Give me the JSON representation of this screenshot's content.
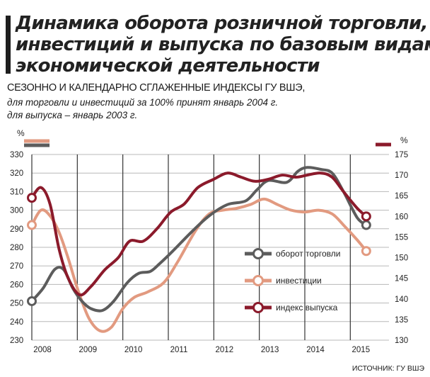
{
  "header": {
    "title_line1": "Динамика оборота розничной торговли,",
    "title_line2": "инвестиций и выпуска по базовым видам",
    "title_line3": "экономической деятельности",
    "subtitle1": "СЕЗОННО И КАЛЕНДАРНО СГЛАЖЕННЫЕ ИНДЕКСЫ ГУ ВШЭ,",
    "subtitle2": "для торговли и инвестиций за 100% принят январь 2004 г.",
    "subtitle3": "для выпуска – январь 2003 г."
  },
  "source": "ИСТОЧНИК: ГУ ВШЭ",
  "colors": {
    "trade": "#5c5c5c",
    "investment": "#e29a80",
    "output": "#8b1a2b",
    "grid": "#b8b8b8",
    "background": "#ffffff"
  },
  "chart_data": {
    "type": "line",
    "x_ticks": [
      "2008",
      "2009",
      "2010",
      "2011",
      "2012",
      "2013",
      "2014",
      "2015"
    ],
    "x_range": [
      2008,
      2015.85
    ],
    "left_axis": {
      "unit": "%",
      "min": 230,
      "max": 330,
      "ticks": [
        230,
        240,
        250,
        260,
        270,
        280,
        290,
        300,
        310,
        320,
        330
      ]
    },
    "right_axis": {
      "unit": "%",
      "min": 130,
      "max": 175,
      "ticks": [
        130,
        135,
        140,
        145,
        150,
        155,
        160,
        165,
        170,
        175
      ]
    },
    "series": [
      {
        "name": "оборот торговли",
        "axis": "left",
        "color": "#5c5c5c",
        "points": [
          [
            2008,
            251
          ],
          [
            2008.25,
            258
          ],
          [
            2008.5,
            268
          ],
          [
            2008.7,
            268
          ],
          [
            2008.9,
            258
          ],
          [
            2009.1,
            251
          ],
          [
            2009.3,
            247
          ],
          [
            2009.55,
            246
          ],
          [
            2009.8,
            251
          ],
          [
            2010.1,
            261
          ],
          [
            2010.35,
            266
          ],
          [
            2010.6,
            267
          ],
          [
            2010.8,
            271
          ],
          [
            2011.1,
            278
          ],
          [
            2011.5,
            288
          ],
          [
            2011.9,
            297
          ],
          [
            2012.3,
            303
          ],
          [
            2012.7,
            305
          ],
          [
            2012.95,
            311
          ],
          [
            2013.2,
            316
          ],
          [
            2013.6,
            315
          ],
          [
            2013.85,
            321
          ],
          [
            2014.05,
            323
          ],
          [
            2014.35,
            322
          ],
          [
            2014.6,
            320
          ],
          [
            2014.85,
            310
          ],
          [
            2015.15,
            296
          ],
          [
            2015.35,
            292
          ]
        ]
      },
      {
        "name": "инвестиции",
        "axis": "left",
        "color": "#e29a80",
        "points": [
          [
            2008,
            292
          ],
          [
            2008.2,
            300
          ],
          [
            2008.4,
            297
          ],
          [
            2008.6,
            288
          ],
          [
            2008.8,
            274
          ],
          [
            2009,
            258
          ],
          [
            2009.25,
            242
          ],
          [
            2009.5,
            235
          ],
          [
            2009.75,
            237
          ],
          [
            2010,
            247
          ],
          [
            2010.25,
            253
          ],
          [
            2010.55,
            256
          ],
          [
            2010.9,
            261
          ],
          [
            2011.2,
            272
          ],
          [
            2011.6,
            289
          ],
          [
            2011.9,
            298
          ],
          [
            2012.2,
            300
          ],
          [
            2012.5,
            301
          ],
          [
            2012.8,
            303
          ],
          [
            2013.1,
            306
          ],
          [
            2013.4,
            303
          ],
          [
            2013.7,
            300
          ],
          [
            2014,
            299
          ],
          [
            2014.3,
            300
          ],
          [
            2014.6,
            298
          ],
          [
            2014.85,
            292
          ],
          [
            2015.15,
            284
          ],
          [
            2015.35,
            278
          ]
        ]
      },
      {
        "name": "индекс выпуска",
        "axis": "right",
        "color": "#8b1a2b",
        "points": [
          [
            2008,
            164.5
          ],
          [
            2008.2,
            167
          ],
          [
            2008.4,
            163
          ],
          [
            2008.6,
            152
          ],
          [
            2008.8,
            145
          ],
          [
            2009.05,
            141
          ],
          [
            2009.3,
            143
          ],
          [
            2009.6,
            147
          ],
          [
            2009.9,
            150
          ],
          [
            2010.15,
            154
          ],
          [
            2010.45,
            154
          ],
          [
            2010.75,
            157
          ],
          [
            2011.05,
            161
          ],
          [
            2011.35,
            163
          ],
          [
            2011.65,
            167
          ],
          [
            2012,
            169
          ],
          [
            2012.3,
            170.5
          ],
          [
            2012.6,
            169.5
          ],
          [
            2012.9,
            168.5
          ],
          [
            2013.2,
            169
          ],
          [
            2013.5,
            170
          ],
          [
            2013.8,
            169.5
          ],
          [
            2014.05,
            170
          ],
          [
            2014.35,
            170.5
          ],
          [
            2014.6,
            169.5
          ],
          [
            2014.85,
            166
          ],
          [
            2015.15,
            162
          ],
          [
            2015.35,
            160
          ]
        ]
      }
    ],
    "legend": {
      "position": "center-right"
    }
  }
}
